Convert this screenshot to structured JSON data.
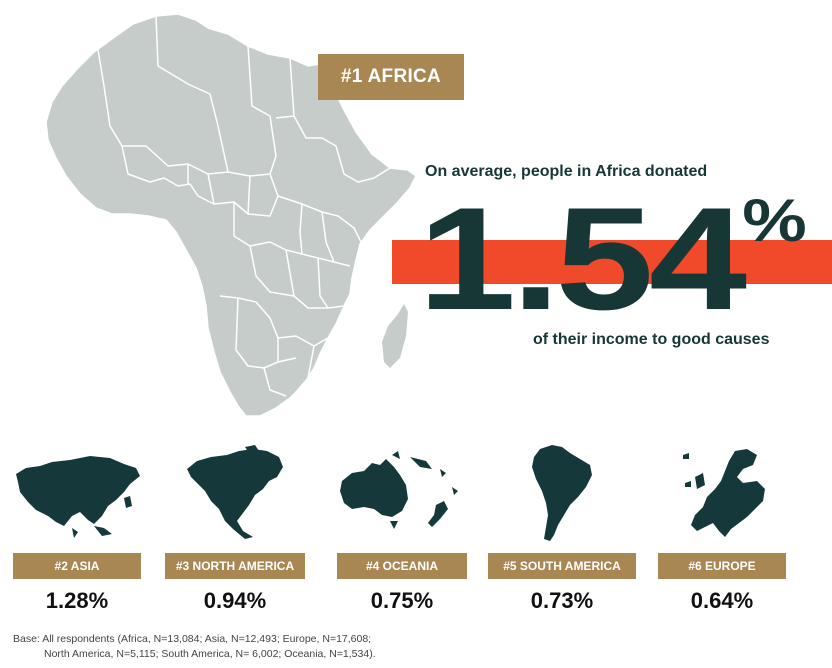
{
  "chart_data": {
    "type": "bar",
    "title": "#1 AFRICA",
    "headline": {
      "intro": "On average, people in Africa donated",
      "value": "1.54%",
      "outro": "of their income to good causes"
    },
    "unit": "% of income donated",
    "categories": [
      "Africa",
      "Asia",
      "North America",
      "Oceania",
      "South America",
      "Europe"
    ],
    "values": [
      1.54,
      1.28,
      0.94,
      0.75,
      0.73,
      0.64
    ],
    "rankings": [
      {
        "label": "#2 ASIA",
        "value": "1.28%"
      },
      {
        "label": "#3 NORTH AMERICA",
        "value": "0.94%"
      },
      {
        "label": "#4 OCEANIA",
        "value": "0.75%"
      },
      {
        "label": "#5 SOUTH AMERICA",
        "value": "0.73%"
      },
      {
        "label": "#6 EUROPE",
        "value": "0.64%"
      }
    ],
    "footnote": {
      "line1": "Base: All respondents (Africa, N=13,084; Asia, N=12,493; Europe, N=17,608;",
      "line2": "North America, N=5,115; South America, N= 6,002; Oceania, N=1,534)."
    }
  },
  "colors": {
    "badge": "#a88753",
    "highlight_bar": "#f04a2a",
    "headline_text": "#173737",
    "map_primary": "#c5ccca",
    "map_region": "#15393b"
  },
  "icons": [
    "africa-map",
    "asia-map-icon",
    "north-america-map-icon",
    "oceania-map-icon",
    "south-america-map-icon",
    "europe-map-icon"
  ]
}
